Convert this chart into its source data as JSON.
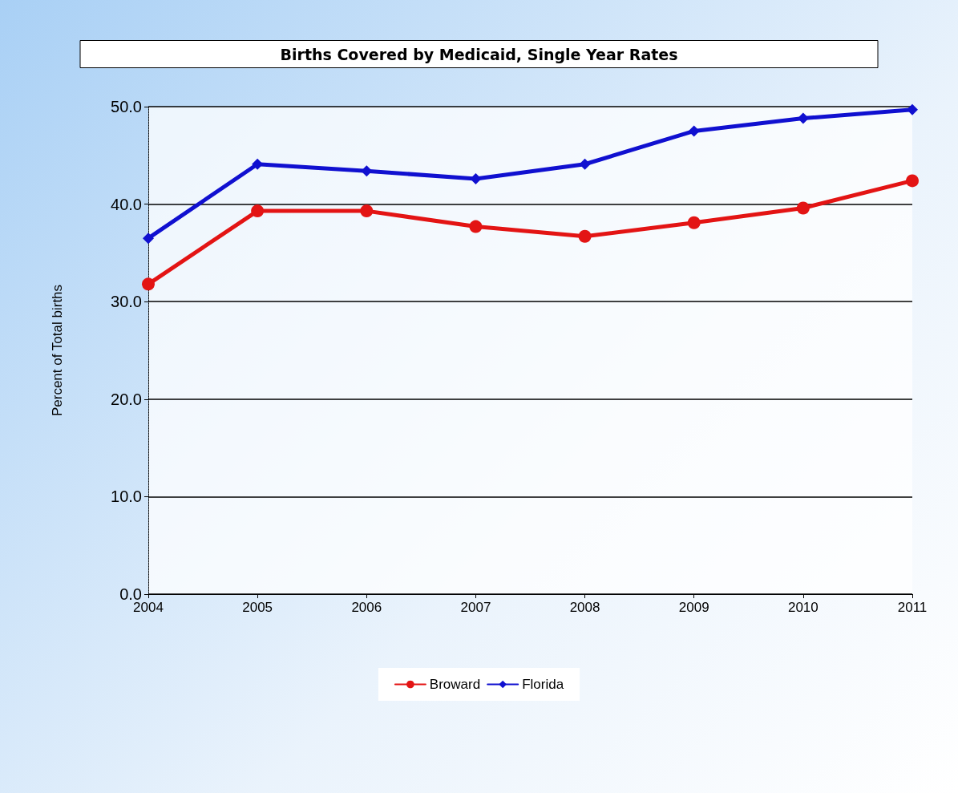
{
  "chart_data": {
    "type": "line",
    "title": "Births Covered by Medicaid, Single Year Rates",
    "ylabel": "Percent of Total births",
    "categories": [
      "2004",
      "2005",
      "2006",
      "2007",
      "2008",
      "2009",
      "2010",
      "2011"
    ],
    "series": [
      {
        "name": "Broward",
        "color": "#e31414",
        "marker": "circle",
        "values": [
          31.8,
          39.3,
          39.3,
          37.7,
          36.7,
          38.1,
          39.6,
          42.4
        ]
      },
      {
        "name": "Florida",
        "color": "#1010d0",
        "marker": "diamond",
        "values": [
          36.5,
          44.1,
          43.4,
          42.6,
          44.1,
          47.5,
          48.8,
          49.7
        ]
      }
    ],
    "ylim": [
      0,
      50
    ],
    "yticks": [
      {
        "value": 0,
        "label": "0.0"
      },
      {
        "value": 10,
        "label": "10.0"
      },
      {
        "value": 20,
        "label": "20.0"
      },
      {
        "value": 30,
        "label": "30.0"
      },
      {
        "value": 40,
        "label": "40.0"
      },
      {
        "value": 50,
        "label": "50.0"
      }
    ],
    "grid": "y",
    "legend": "bottom",
    "line_style": "solid"
  }
}
